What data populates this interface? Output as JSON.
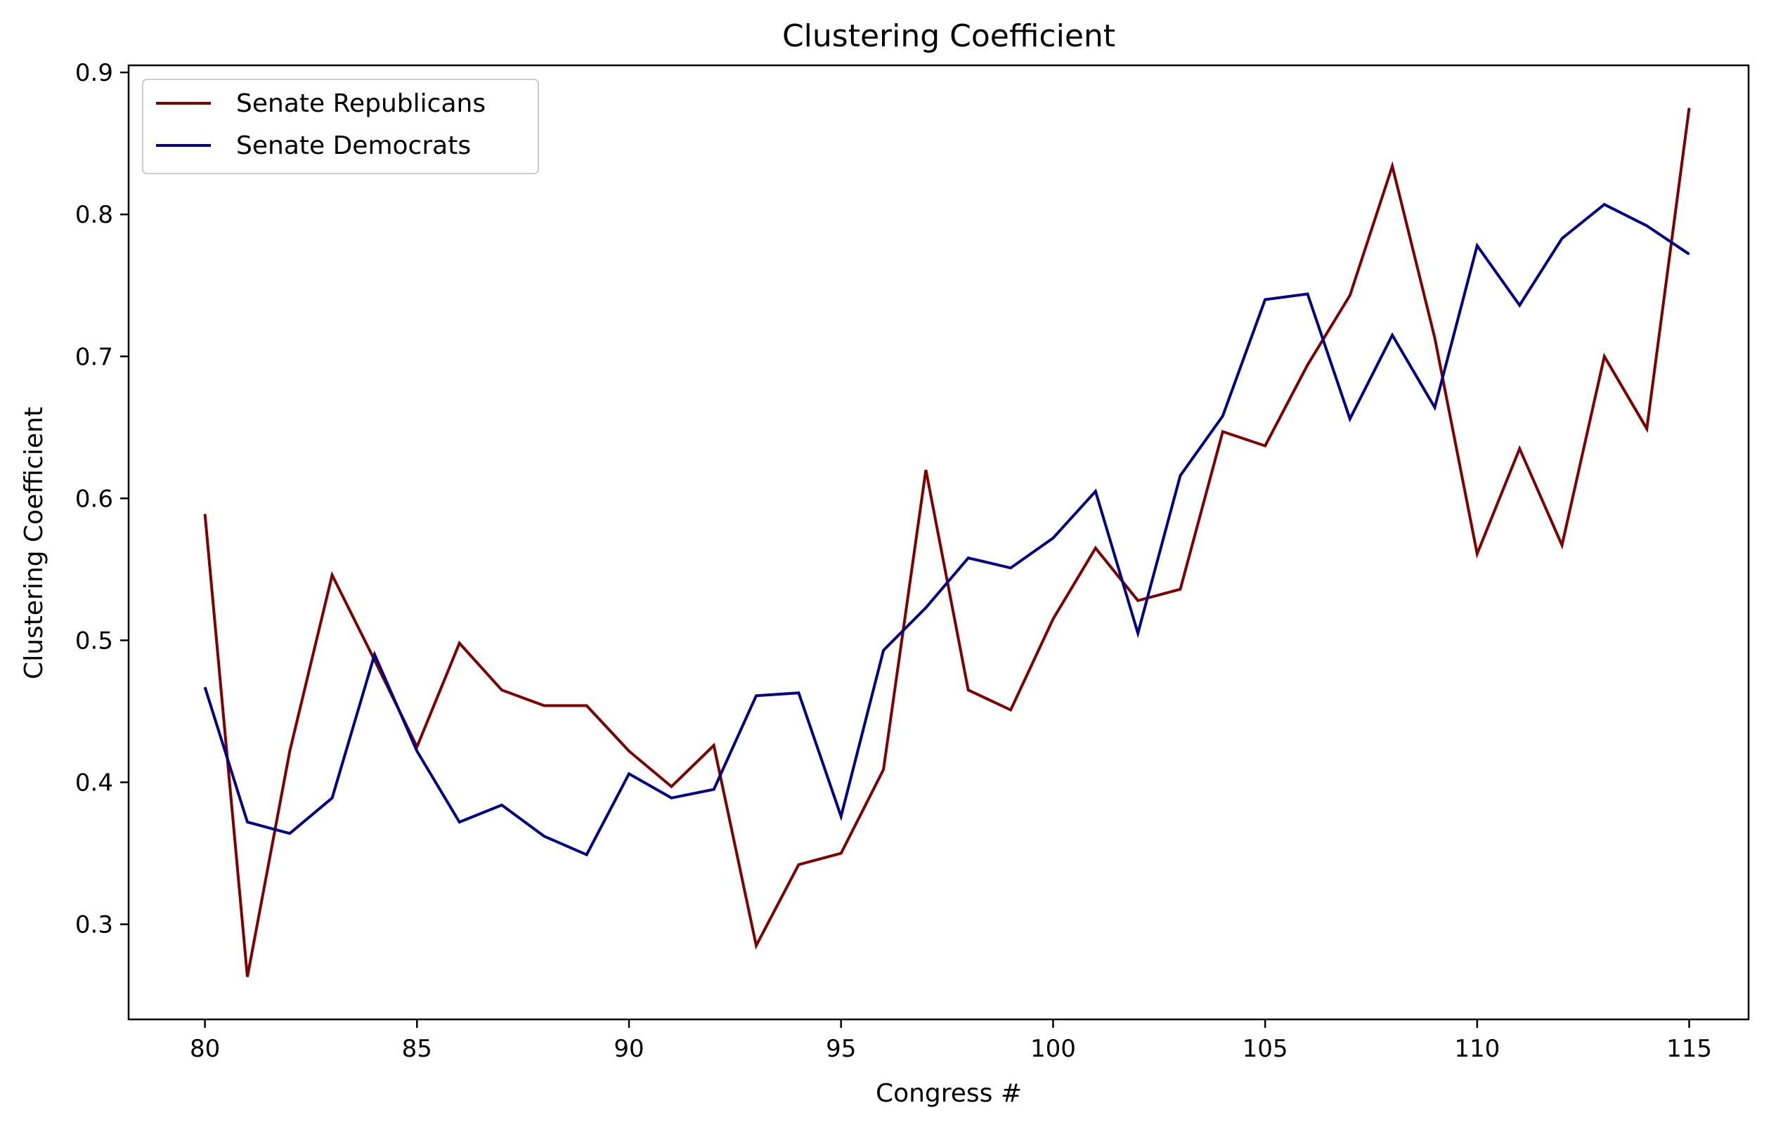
{
  "chart_data": {
    "type": "line",
    "title": "Clustering Coefficient",
    "xlabel": "Congress #",
    "ylabel": "Clustering Coefficient",
    "xlim": [
      78.2,
      116.4
    ],
    "ylim": [
      0.233,
      0.905
    ],
    "xticks": [
      80,
      85,
      90,
      95,
      100,
      105,
      110,
      115
    ],
    "yticks": [
      0.3,
      0.4,
      0.5,
      0.6,
      0.7,
      0.8,
      0.9
    ],
    "grid": false,
    "legend_position": "top-left",
    "x": [
      80,
      81,
      82,
      83,
      84,
      85,
      86,
      87,
      88,
      89,
      90,
      91,
      92,
      93,
      94,
      95,
      96,
      97,
      98,
      99,
      100,
      101,
      102,
      103,
      104,
      105,
      106,
      107,
      108,
      109,
      110,
      111,
      112,
      113,
      114,
      115
    ],
    "series": [
      {
        "name": "Senate Republicans",
        "color": "#800000",
        "values": [
          0.589,
          0.263,
          0.422,
          0.546,
          0.486,
          0.425,
          0.498,
          0.465,
          0.454,
          0.454,
          0.422,
          0.397,
          0.426,
          0.285,
          0.342,
          0.35,
          0.409,
          0.62,
          0.465,
          0.451,
          0.515,
          0.565,
          0.528,
          0.536,
          0.647,
          0.637,
          0.694,
          0.743,
          0.834,
          0.713,
          0.561,
          0.635,
          0.567,
          0.7,
          0.649,
          0.875
        ]
      },
      {
        "name": "Senate Democrats",
        "color": "#00008b",
        "values": [
          0.467,
          0.372,
          0.364,
          0.389,
          0.49,
          0.422,
          0.372,
          0.384,
          0.362,
          0.349,
          0.406,
          0.389,
          0.395,
          0.461,
          0.463,
          0.376,
          0.493,
          0.523,
          0.558,
          0.551,
          0.572,
          0.605,
          0.505,
          0.616,
          0.658,
          0.74,
          0.744,
          0.656,
          0.715,
          0.664,
          0.778,
          0.736,
          0.783,
          0.807,
          0.792,
          0.772
        ]
      }
    ]
  }
}
